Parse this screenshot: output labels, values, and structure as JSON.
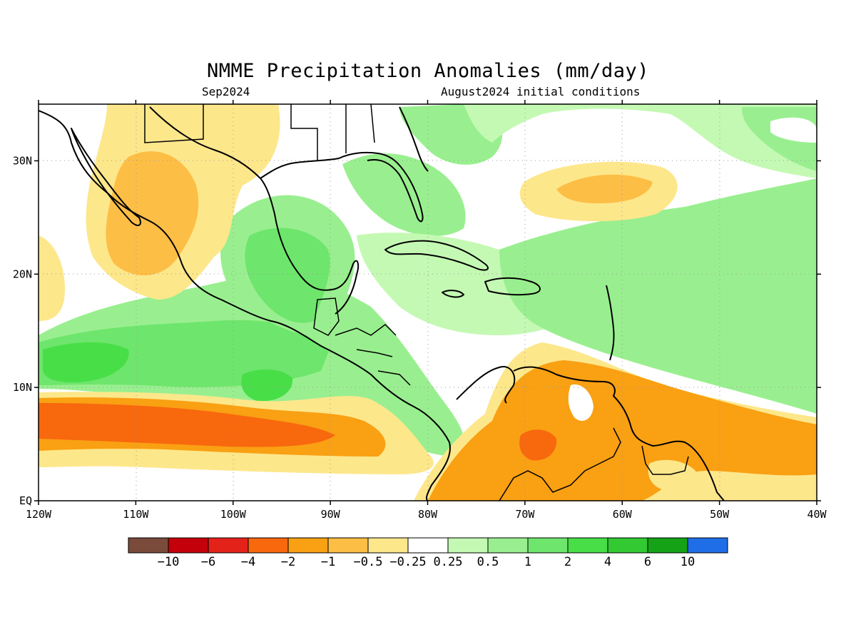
{
  "title": "NMME Precipitation Anomalies (mm/day)",
  "subtitle_left": "Sep2024",
  "subtitle_right": "August2024 initial conditions",
  "map": {
    "lon_range": [
      -120,
      -40
    ],
    "lat_range": [
      0,
      35
    ],
    "lon_ticks": [
      {
        "value": -120,
        "label": "120W"
      },
      {
        "value": -110,
        "label": "110W"
      },
      {
        "value": -100,
        "label": "100W"
      },
      {
        "value": -90,
        "label": "90W"
      },
      {
        "value": -80,
        "label": "80W"
      },
      {
        "value": -70,
        "label": "70W"
      },
      {
        "value": -60,
        "label": "60W"
      },
      {
        "value": -50,
        "label": "50W"
      },
      {
        "value": -40,
        "label": "40W"
      }
    ],
    "lat_ticks": [
      {
        "value": 0,
        "label": "EQ"
      },
      {
        "value": 10,
        "label": "10N"
      },
      {
        "value": 20,
        "label": "20N"
      },
      {
        "value": 30,
        "label": "30N"
      }
    ],
    "grid": true
  },
  "colorbar": {
    "colors": [
      "#7a4a3a",
      "#c4000b",
      "#e3221a",
      "#f8680d",
      "#f9a013",
      "#fdbe46",
      "#fde78b",
      "#ffffff",
      "#c4f9b3",
      "#99ef8f",
      "#6ee56c",
      "#48de48",
      "#32c932",
      "#16a216",
      "#1f6ee8"
    ],
    "labels": [
      "-10",
      "-6",
      "-4",
      "-2",
      "-1",
      "-0.5",
      "-0.25",
      "0.25",
      "0.5",
      "1",
      "2",
      "4",
      "6",
      "10"
    ]
  }
}
